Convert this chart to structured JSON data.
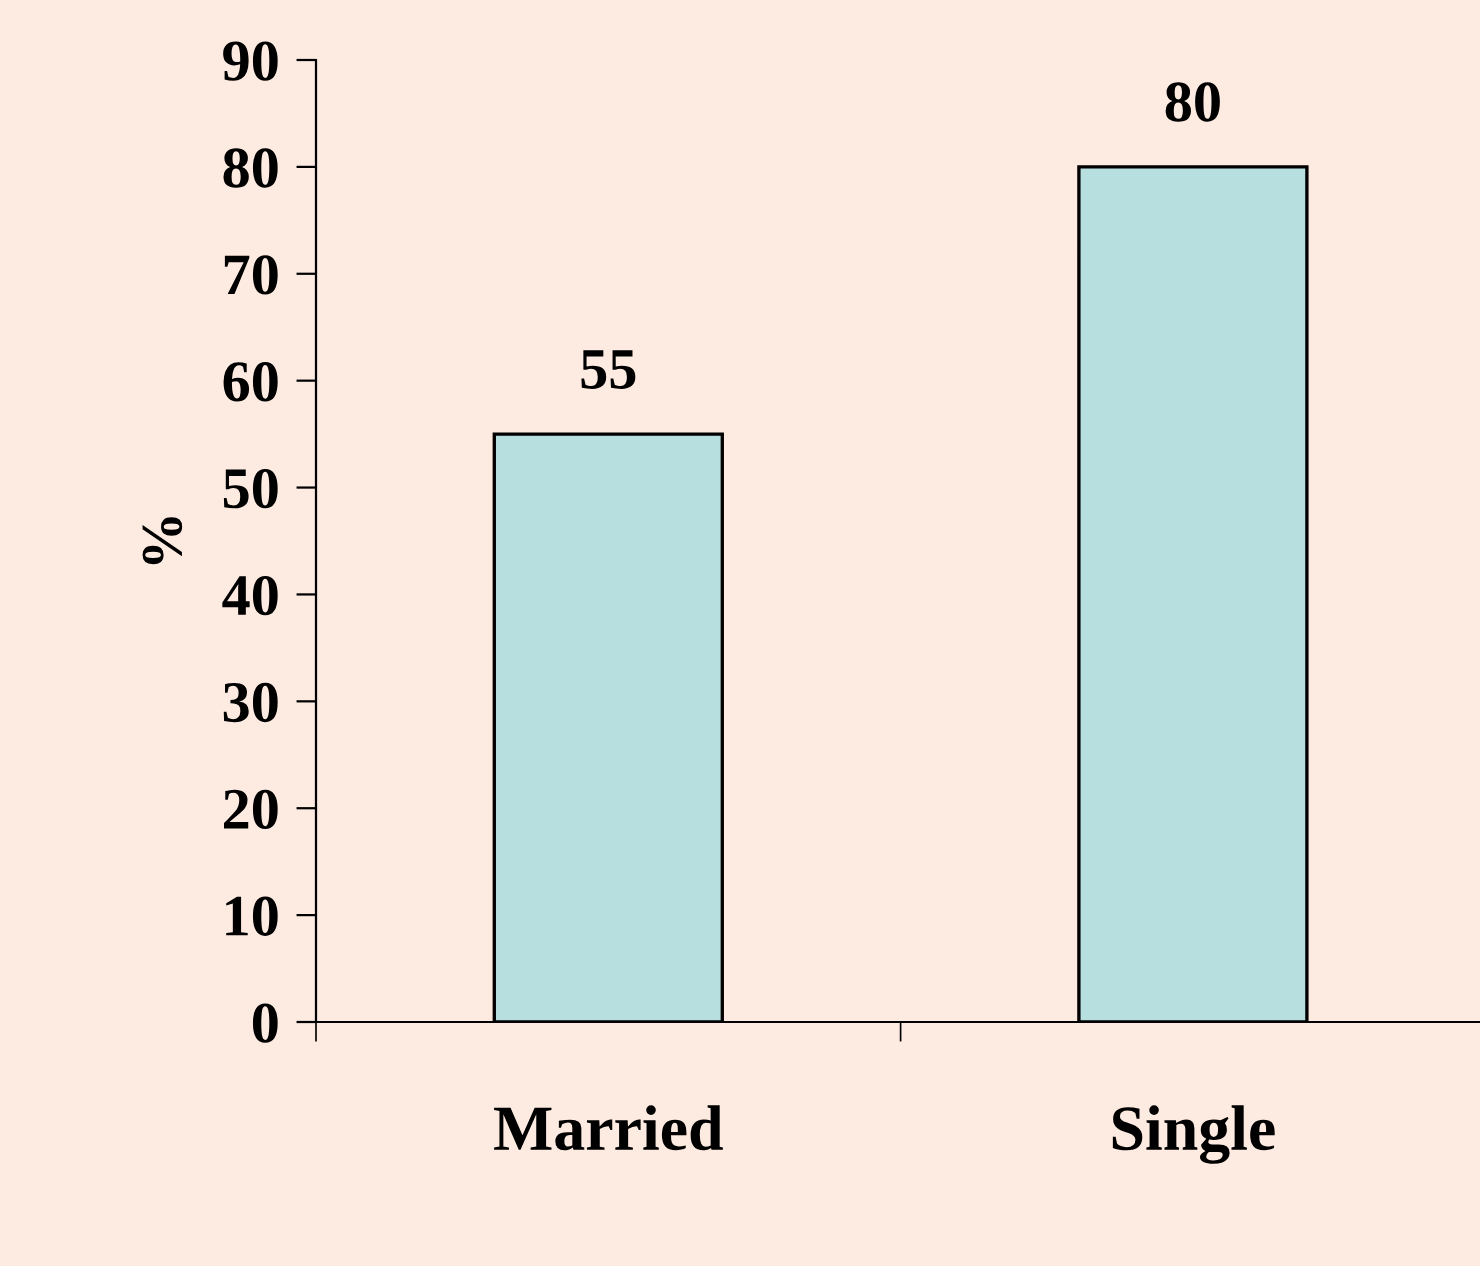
{
  "chart_data": {
    "type": "bar",
    "ylabel": "%",
    "categories": [
      "Married",
      "Single"
    ],
    "values": [
      55,
      80
    ],
    "color": "#b7dfe0",
    "ylim": [
      0,
      90
    ],
    "yticks": [
      0,
      10,
      20,
      30,
      40,
      50,
      60,
      70,
      80,
      90
    ],
    "data_labels": true,
    "grid": false
  }
}
